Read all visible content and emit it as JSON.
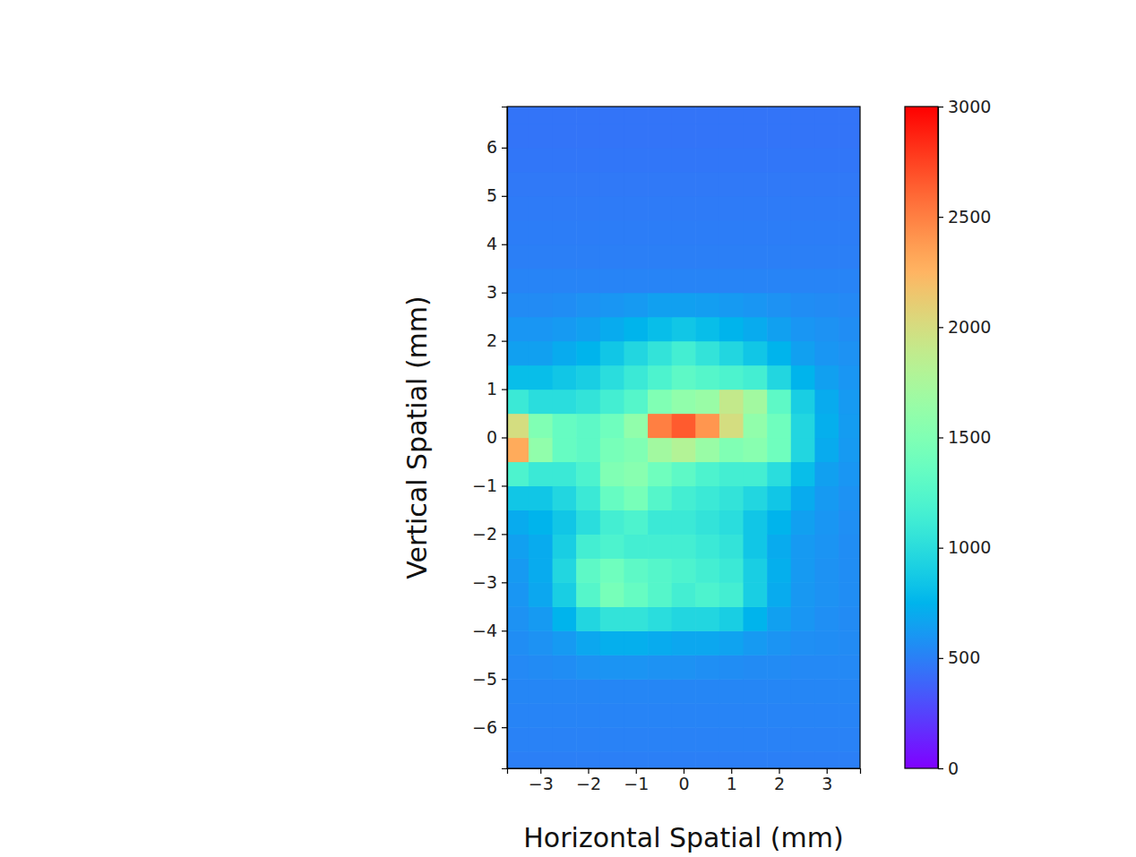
{
  "chart_data": {
    "type": "heatmap",
    "xlabel": "Horizontal Spatial (mm)",
    "ylabel": "Vertical Spatial (mm)",
    "color": "rainbow",
    "xlim": [
      -3.7,
      3.7
    ],
    "ylim": [
      -6.85,
      6.85
    ],
    "xticks": [
      {
        "value": -3,
        "label": "−3"
      },
      {
        "value": -2,
        "label": "−2"
      },
      {
        "value": -1,
        "label": "−1"
      },
      0,
      1,
      2,
      3
    ],
    "yticks": [
      {
        "value": -6,
        "label": "−6"
      },
      {
        "value": -5,
        "label": "−5"
      },
      {
        "value": -4,
        "label": "−4"
      },
      {
        "value": -3,
        "label": "−3"
      },
      {
        "value": -2,
        "label": "−2"
      },
      {
        "value": -1,
        "label": "−1"
      },
      0,
      1,
      2,
      3,
      4,
      5,
      6
    ],
    "x": [
      -3.5,
      -3,
      -2.5,
      -2,
      -1.5,
      -1,
      -0.5,
      0,
      0.5,
      1,
      1.5,
      2,
      2.5,
      3,
      3.5
    ],
    "y": [
      -6.75,
      -6.25,
      -5.75,
      -5.25,
      -4.75,
      -4.25,
      -3.75,
      -3.25,
      -2.75,
      -2.25,
      -1.75,
      -1.25,
      -0.75,
      -0.25,
      0.25,
      0.75,
      1.25,
      1.75,
      2.25,
      2.75,
      3.25,
      3.75,
      4.25,
      4.75,
      5.25,
      5.75,
      6.25,
      6.75
    ],
    "z": [
      [
        500,
        500,
        500,
        500,
        500,
        500,
        500,
        500,
        500,
        500,
        500,
        500,
        500,
        500,
        500
      ],
      [
        510,
        510,
        510,
        510,
        510,
        510,
        510,
        510,
        510,
        510,
        510,
        510,
        510,
        510,
        510
      ],
      [
        520,
        520,
        520,
        520,
        520,
        520,
        520,
        520,
        520,
        520,
        520,
        520,
        520,
        520,
        520
      ],
      [
        530,
        530,
        530,
        530,
        530,
        530,
        530,
        530,
        530,
        530,
        530,
        530,
        530,
        530,
        530
      ],
      [
        540,
        550,
        560,
        580,
        590,
        590,
        580,
        580,
        570,
        560,
        550,
        550,
        540,
        540,
        540
      ],
      [
        560,
        580,
        620,
        680,
        720,
        720,
        700,
        680,
        680,
        660,
        620,
        590,
        570,
        560,
        550
      ],
      [
        580,
        620,
        750,
        950,
        1050,
        1050,
        1000,
        950,
        950,
        900,
        750,
        650,
        600,
        570,
        550
      ],
      [
        600,
        680,
        900,
        1250,
        1450,
        1350,
        1250,
        1150,
        1200,
        1150,
        900,
        700,
        610,
        580,
        560
      ],
      [
        620,
        700,
        950,
        1300,
        1400,
        1300,
        1250,
        1200,
        1150,
        1100,
        900,
        720,
        620,
        580,
        560
      ],
      [
        650,
        700,
        900,
        1150,
        1200,
        1150,
        1150,
        1150,
        1100,
        1050,
        850,
        700,
        620,
        590,
        560
      ],
      [
        700,
        750,
        850,
        1000,
        1150,
        1200,
        1100,
        1100,
        1050,
        1000,
        850,
        750,
        650,
        600,
        570
      ],
      [
        850,
        850,
        950,
        1100,
        1350,
        1450,
        1250,
        1150,
        1100,
        1050,
        950,
        850,
        700,
        620,
        580
      ],
      [
        1200,
        1100,
        1100,
        1200,
        1500,
        1550,
        1400,
        1300,
        1200,
        1150,
        1150,
        1000,
        800,
        650,
        600
      ],
      [
        2300,
        1600,
        1350,
        1300,
        1450,
        1500,
        1700,
        1800,
        1650,
        1500,
        1550,
        1400,
        950,
        700,
        620
      ],
      [
        2000,
        1500,
        1350,
        1300,
        1400,
        1600,
        2500,
        2650,
        2400,
        2000,
        1600,
        1400,
        950,
        720,
        630
      ],
      [
        1100,
        1000,
        1000,
        1050,
        1150,
        1250,
        1500,
        1600,
        1650,
        1900,
        1700,
        1300,
        900,
        700,
        620
      ],
      [
        800,
        800,
        850,
        900,
        1000,
        1100,
        1200,
        1300,
        1250,
        1200,
        1150,
        950,
        750,
        650,
        600
      ],
      [
        650,
        650,
        700,
        750,
        850,
        950,
        1050,
        1150,
        1050,
        950,
        850,
        750,
        650,
        600,
        580
      ],
      [
        600,
        600,
        620,
        650,
        700,
        750,
        800,
        850,
        800,
        750,
        700,
        650,
        600,
        580,
        560
      ],
      [
        550,
        550,
        560,
        580,
        600,
        620,
        650,
        650,
        640,
        620,
        600,
        580,
        560,
        550,
        540
      ],
      [
        520,
        520,
        520,
        520,
        520,
        520,
        520,
        520,
        520,
        520,
        520,
        520,
        520,
        520,
        520
      ],
      [
        500,
        500,
        500,
        500,
        500,
        500,
        500,
        500,
        500,
        500,
        500,
        500,
        500,
        500,
        500
      ],
      [
        490,
        490,
        490,
        490,
        490,
        490,
        490,
        490,
        490,
        490,
        490,
        490,
        490,
        490,
        490
      ],
      [
        480,
        480,
        480,
        480,
        480,
        480,
        480,
        480,
        480,
        480,
        480,
        480,
        480,
        480,
        480
      ],
      [
        470,
        470,
        470,
        470,
        470,
        470,
        470,
        470,
        470,
        470,
        470,
        470,
        470,
        470,
        470
      ],
      [
        460,
        460,
        460,
        460,
        460,
        460,
        460,
        460,
        460,
        460,
        460,
        460,
        460,
        460,
        460
      ],
      [
        450,
        450,
        450,
        450,
        450,
        450,
        450,
        450,
        450,
        450,
        450,
        450,
        450,
        450,
        450
      ],
      [
        450,
        450,
        450,
        450,
        450,
        450,
        450,
        450,
        450,
        450,
        450,
        450,
        450,
        450,
        450
      ]
    ],
    "colorbar": {
      "range": [
        0,
        3000
      ],
      "ticks": [
        0,
        500,
        1000,
        1500,
        2000,
        2500,
        3000
      ]
    }
  }
}
